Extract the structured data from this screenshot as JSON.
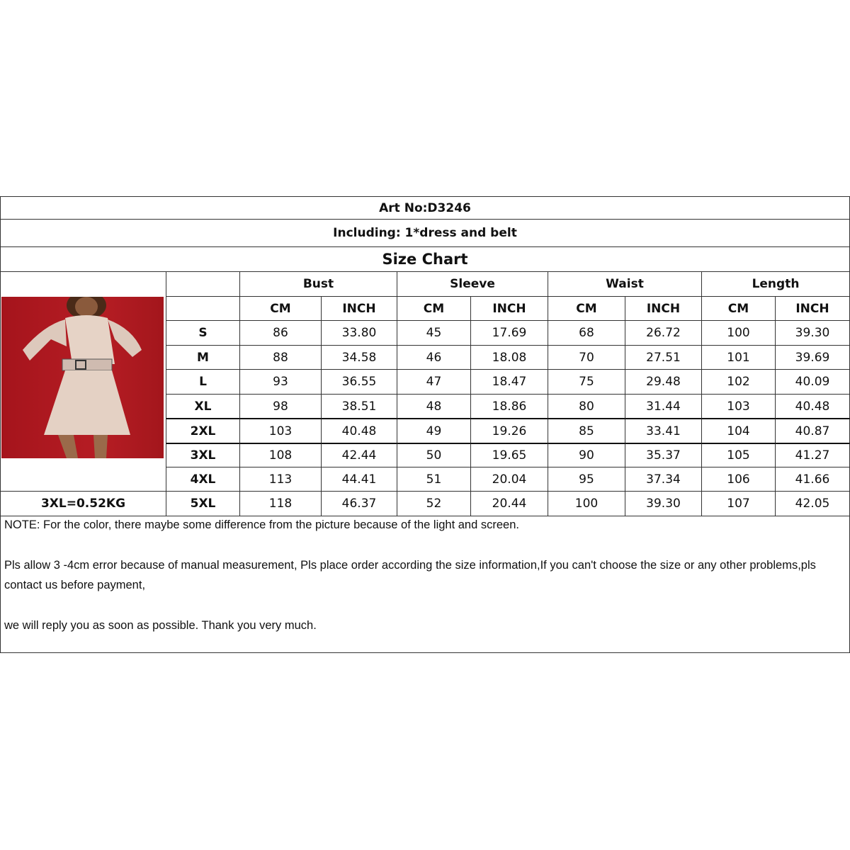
{
  "art_no": "Art No:D3246",
  "including": "Including:  1*dress and belt",
  "title": "Size Chart",
  "weight_note": "3XL=0.52KG",
  "groups": [
    "Bust",
    "Sleeve",
    "Waist",
    "Length"
  ],
  "units": [
    "CM",
    "INCH",
    "CM",
    "INCH",
    "CM",
    "INCH",
    "CM",
    "INCH"
  ],
  "rows": [
    {
      "size": "S",
      "values": [
        "86",
        "33.80",
        "45",
        "17.69",
        "68",
        "26.72",
        "100",
        "39.30"
      ]
    },
    {
      "size": "M",
      "values": [
        "88",
        "34.58",
        "46",
        "18.08",
        "70",
        "27.51",
        "101",
        "39.69"
      ]
    },
    {
      "size": "L",
      "values": [
        "93",
        "36.55",
        "47",
        "18.47",
        "75",
        "29.48",
        "102",
        "40.09"
      ]
    },
    {
      "size": "XL",
      "values": [
        "98",
        "38.51",
        "48",
        "18.86",
        "80",
        "31.44",
        "103",
        "40.48"
      ]
    },
    {
      "size": "2XL",
      "values": [
        "103",
        "40.48",
        "49",
        "19.26",
        "85",
        "33.41",
        "104",
        "40.87"
      ]
    },
    {
      "size": "3XL",
      "values": [
        "108",
        "42.44",
        "50",
        "19.65",
        "90",
        "35.37",
        "105",
        "41.27"
      ]
    },
    {
      "size": "4XL",
      "values": [
        "113",
        "44.41",
        "51",
        "20.04",
        "95",
        "37.34",
        "106",
        "41.66"
      ]
    },
    {
      "size": "5XL",
      "values": [
        "118",
        "46.37",
        "52",
        "20.44",
        "100",
        "39.30",
        "107",
        "42.05"
      ]
    }
  ],
  "notes": [
    "NOTE:  For the color, there maybe some difference from the picture because of the light and screen.",
    "Pls allow 3 -4cm error because of manual measurement, Pls place order according the size information,If you can't choose the size or any other problems,pls contact us before payment,",
    "we will reply you as soon as possible. Thank you very much."
  ],
  "photo": {
    "background_color": "#b01a22",
    "dress_color": "#e2cdbf"
  }
}
